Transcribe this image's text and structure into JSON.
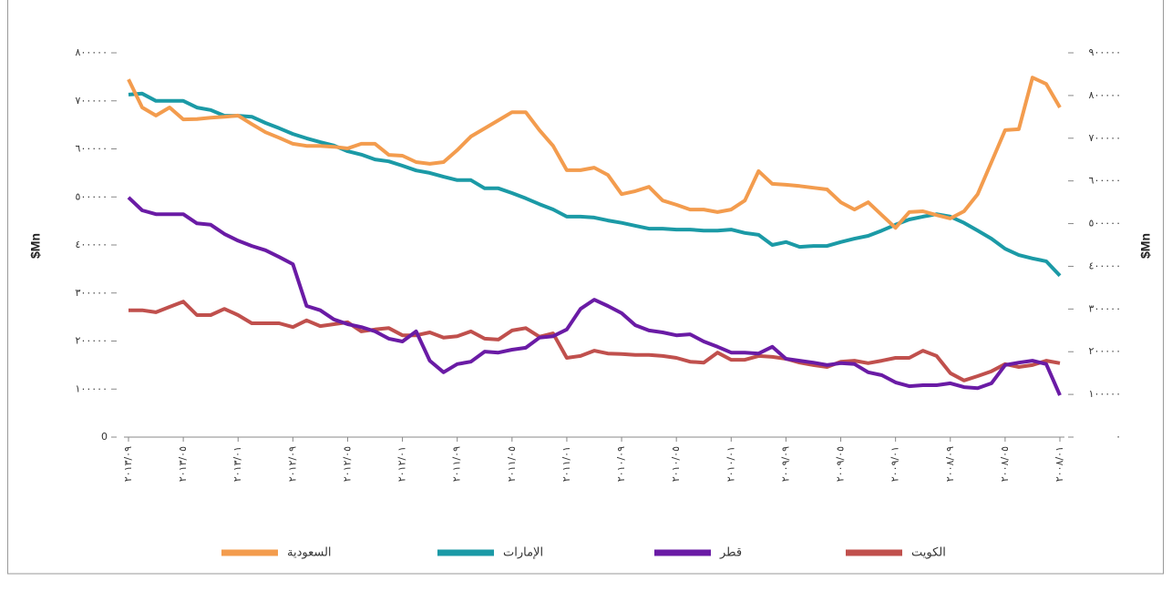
{
  "chart_data": {
    "type": "line",
    "ylabel": "$Mn",
    "y2label": "$Mn",
    "categories": [
      "٢٠١٣/٠٩",
      null,
      null,
      null,
      "٢٠١٣/٠٥",
      null,
      null,
      null,
      "٢٠١٣/٠١",
      null,
      null,
      null,
      "٢٠١٢/٠٩",
      null,
      null,
      null,
      "٢٠١٢/٠٥",
      null,
      null,
      null,
      "٢٠١٢/٠١",
      null,
      null,
      null,
      "٢٠١١/٠٩",
      null,
      null,
      null,
      "٢٠١١/٠٥",
      null,
      null,
      null,
      "٢٠١١/٠١",
      null,
      null,
      null,
      "٢٠١٠/٠٩",
      null,
      null,
      null,
      "٢٠١٠/٠٥",
      null,
      null,
      null,
      "٢٠١٠/٠١",
      null,
      null,
      null,
      "٢٠٠٩/٠٩",
      null,
      null,
      null,
      "٢٠٠٩/٠٥",
      null,
      null,
      null,
      "٢٠٠٩/٠١",
      null,
      null,
      null,
      "٢٠٠٨/٠٩",
      null,
      null,
      null,
      "٢٠٠٨/٠٥",
      null,
      null,
      null,
      "٢٠٠٨/٠١"
    ],
    "ylim": [
      0,
      800000
    ],
    "yticks": [
      0,
      {
        "value": 100000,
        "label": "١٠٠٠٠٠"
      },
      {
        "value": 200000,
        "label": "٢٠٠٠٠٠"
      },
      {
        "value": 300000,
        "label": "٣٠٠٠٠٠"
      },
      {
        "value": 400000,
        "label": "٤٠٠٠٠٠"
      },
      {
        "value": 500000,
        "label": "٥٠٠٠٠٠"
      },
      {
        "value": 600000,
        "label": "٦٠٠٠٠٠"
      },
      {
        "value": 700000,
        "label": "٧٠٠٠٠٠"
      },
      {
        "value": 800000,
        "label": "٨٠٠٠٠٠"
      }
    ],
    "y2lim": [
      0,
      900000
    ],
    "y2ticks": [
      {
        "value": 0,
        "label": "٠"
      },
      {
        "value": 100000,
        "label": "١٠٠٠٠٠"
      },
      {
        "value": 200000,
        "label": "٢٠٠٠٠٠"
      },
      {
        "value": 300000,
        "label": "٣٠٠٠٠٠"
      },
      {
        "value": 400000,
        "label": "٤٠٠٠٠٠"
      },
      {
        "value": 500000,
        "label": "٥٠٠٠٠٠"
      },
      {
        "value": 600000,
        "label": "٦٠٠٠٠٠"
      },
      {
        "value": 700000,
        "label": "٧٠٠٠٠٠"
      },
      {
        "value": 800000,
        "label": "٨٠٠٠٠٠"
      },
      {
        "value": 900000,
        "label": "٩٠٠٠٠٠"
      }
    ],
    "legend": "bottom",
    "series": [
      {
        "name": "السعودية",
        "color": "#f39c4e",
        "axis": "y2",
        "values": [
          838000,
          772000,
          753000,
          772000,
          744000,
          745000,
          748000,
          750000,
          753000,
          733000,
          714000,
          701000,
          687000,
          682000,
          682000,
          680000,
          676000,
          687000,
          687000,
          661000,
          659000,
          644000,
          640000,
          644000,
          672000,
          704000,
          723000,
          742000,
          761000,
          761000,
          719000,
          682000,
          625000,
          625000,
          631000,
          614000,
          569000,
          576000,
          586000,
          554000,
          544000,
          533000,
          533000,
          527000,
          533000,
          554000,
          623000,
          593000,
          591000,
          588000,
          584000,
          580000,
          550000,
          533000,
          550000,
          520000,
          490000,
          527000,
          529000,
          520000,
          512000,
          529000,
          569000,
          644000,
          719000,
          721000,
          842000,
          827000,
          772000
        ]
      },
      {
        "name": "الإمارات",
        "color": "#1b9aa6",
        "values": [
          713000,
          715000,
          700000,
          700000,
          700000,
          686000,
          681000,
          669000,
          669000,
          667000,
          654000,
          643000,
          631000,
          622000,
          614000,
          607000,
          595000,
          588000,
          578000,
          574000,
          565000,
          555000,
          550000,
          542000,
          535000,
          535000,
          518000,
          518000,
          508000,
          497000,
          485000,
          474000,
          459000,
          459000,
          457000,
          451000,
          446000,
          440000,
          434000,
          434000,
          432000,
          432000,
          430000,
          430000,
          432000,
          425000,
          421000,
          400000,
          406000,
          396000,
          398000,
          398000,
          406000,
          413000,
          419000,
          430000,
          442000,
          453000,
          459000,
          464000,
          459000,
          446000,
          430000,
          413000,
          392000,
          379000,
          372000,
          366000,
          336000
        ]
      },
      {
        "name": "قطر",
        "color": "#6a1ba5",
        "values": [
          499000,
          472000,
          464000,
          464000,
          464000,
          445000,
          442000,
          423000,
          409000,
          398000,
          389000,
          375000,
          360000,
          273000,
          264000,
          245000,
          235000,
          229000,
          220000,
          205000,
          199000,
          220000,
          159000,
          135000,
          152000,
          157000,
          178000,
          176000,
          182000,
          186000,
          207000,
          210000,
          224000,
          267000,
          286000,
          273000,
          258000,
          233000,
          222000,
          218000,
          212000,
          214000,
          199000,
          188000,
          176000,
          176000,
          174000,
          188000,
          163000,
          159000,
          155000,
          150000,
          154000,
          152000,
          135000,
          129000,
          114000,
          106000,
          108000,
          108000,
          112000,
          104000,
          102000,
          112000,
          150000,
          155000,
          159000,
          152000,
          87000
        ]
      },
      {
        "name": "الكويت",
        "color": "#c0504d",
        "values": [
          264000,
          264000,
          260000,
          271000,
          282000,
          254000,
          254000,
          267000,
          254000,
          237000,
          237000,
          237000,
          229000,
          243000,
          231000,
          235000,
          239000,
          220000,
          224000,
          227000,
          212000,
          212000,
          218000,
          207000,
          210000,
          220000,
          205000,
          203000,
          222000,
          227000,
          209000,
          216000,
          165000,
          169000,
          180000,
          174000,
          173000,
          171000,
          171000,
          169000,
          165000,
          157000,
          155000,
          176000,
          161000,
          161000,
          169000,
          167000,
          163000,
          155000,
          150000,
          146000,
          157000,
          159000,
          154000,
          159000,
          165000,
          165000,
          180000,
          169000,
          133000,
          118000,
          127000,
          137000,
          152000,
          146000,
          150000,
          159000,
          154000
        ]
      }
    ]
  }
}
